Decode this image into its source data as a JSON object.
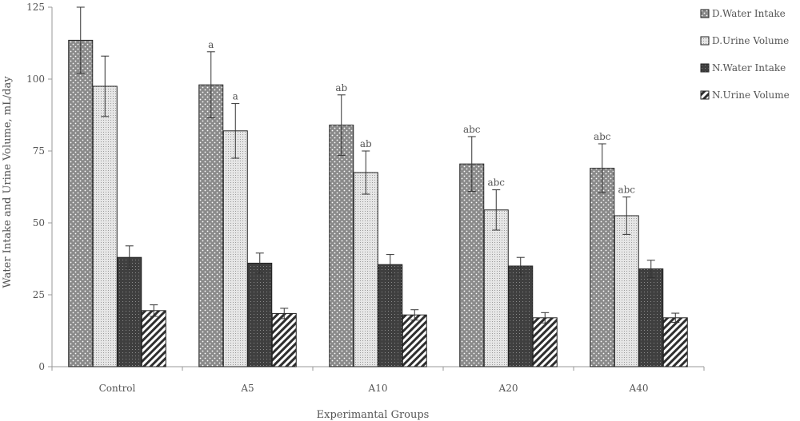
{
  "chart_data": {
    "type": "bar",
    "title": "",
    "xlabel": "Experimantal Groups",
    "ylabel": "Water Intake and Urine Volume, mL/day",
    "ylim": [
      0,
      125
    ],
    "yticks": [
      "0",
      "25",
      "50",
      "75",
      "100",
      "125"
    ],
    "categories": [
      "Control",
      "A5",
      "A10",
      "A20",
      "A40"
    ],
    "legend_position": "top-right",
    "grid": false,
    "series": [
      {
        "name": "D.Water Intake",
        "pattern": "dots-dark",
        "color": "#8a8a8a",
        "values": [
          113.5,
          98,
          84,
          70.5,
          69
        ],
        "errors": [
          11.5,
          11.5,
          10.5,
          9.5,
          8.5
        ],
        "sig_labels": [
          "",
          "a",
          "ab",
          "abc",
          "abc"
        ]
      },
      {
        "name": "D.Urine Volume",
        "pattern": "fine-dots-light",
        "color": "#d4d4d4",
        "values": [
          97.5,
          82,
          67.5,
          54.5,
          52.5
        ],
        "errors": [
          10.5,
          9.5,
          7.5,
          7,
          6.5
        ],
        "sig_labels": [
          "",
          "a",
          "ab",
          "abc",
          "abc"
        ]
      },
      {
        "name": "N.Water Intake",
        "pattern": "grid-dark",
        "color": "#4a4a4a",
        "values": [
          38,
          36,
          35.5,
          35,
          34
        ],
        "errors": [
          4,
          3.5,
          3.5,
          3,
          3
        ],
        "sig_labels": [
          "",
          "",
          "",
          "",
          ""
        ]
      },
      {
        "name": "N.Urine Volume",
        "pattern": "diagonal",
        "color": "#333333",
        "values": [
          19.5,
          18.5,
          18,
          17,
          17
        ],
        "errors": [
          2,
          1.8,
          1.8,
          1.8,
          1.6
        ],
        "sig_labels": [
          "",
          "",
          "",
          "",
          ""
        ]
      }
    ]
  }
}
